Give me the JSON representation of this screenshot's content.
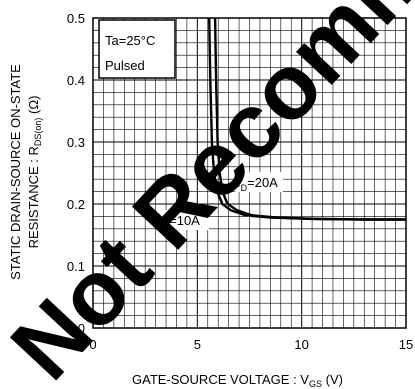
{
  "chart_data": {
    "type": "line",
    "xlabel_main": "GATE-SOURCE VOLTAGE : V",
    "xlabel_sub": "GS",
    "xlabel_unit": " (V)",
    "ylabel_line1": "STATIC DRAIN-SOURCE ON-STATE",
    "ylabel_line2_main": "RESISTANCE : R",
    "ylabel_line2_sub": "DS(on)",
    "ylabel_line2_unit": " (Ω)",
    "xlim": [
      0,
      15
    ],
    "ylim": [
      0,
      0.5
    ],
    "x_ticks": [
      "0",
      "5",
      "10",
      "15"
    ],
    "y_ticks": [
      "0",
      "0.1",
      "0.2",
      "0.3",
      "0.4",
      "0.5"
    ],
    "grid": true,
    "conditions": [
      "Ta=25°C",
      "Pulsed"
    ],
    "series": [
      {
        "name": "ID=10A",
        "label_main": "I",
        "label_sub": "D",
        "label_rest": "=10A",
        "x": [
          5.57,
          5.62,
          5.7,
          5.8,
          5.95,
          6.2,
          6.6,
          7.3,
          8.5,
          10.5,
          13,
          15
        ],
        "y": [
          0.5,
          0.4,
          0.3,
          0.25,
          0.22,
          0.2,
          0.19,
          0.182,
          0.178,
          0.176,
          0.175,
          0.175
        ]
      },
      {
        "name": "ID=20A",
        "label_main": "I",
        "label_sub": "D",
        "label_rest": "=20A",
        "x": [
          5.85,
          5.9,
          5.97,
          6.07,
          6.2,
          6.45,
          6.9,
          7.6,
          8.8,
          10.8,
          13,
          15
        ],
        "y": [
          0.5,
          0.4,
          0.3,
          0.25,
          0.22,
          0.2,
          0.19,
          0.182,
          0.178,
          0.176,
          0.175,
          0.175
        ]
      }
    ],
    "watermark": "Not Recommended"
  }
}
